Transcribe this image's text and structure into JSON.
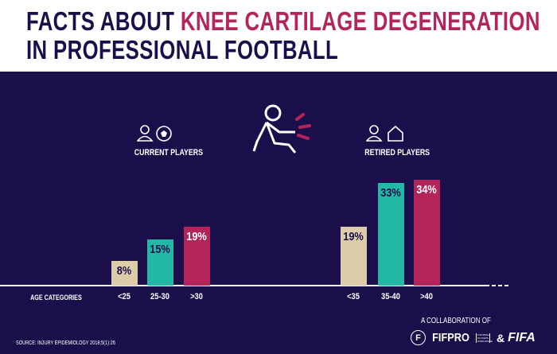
{
  "title": {
    "part1": "FACTS ABOUT ",
    "part2": "KNEE CARTILAGE DEGENERATION",
    "line2": "IN PROFESSIONAL FOOTBALL"
  },
  "groups": {
    "current": "CURRENT PLAYERS",
    "retired": "RETIRED PLAYERS"
  },
  "axis_label": "AGE CATEGORIES",
  "source": "SOURCE: INJURY EPIDEMIOLOGY 2018;5(1):26",
  "collab": {
    "label": "A COLLABORATION OF",
    "fifpro": "FIFPRO",
    "fifpro_sub": "FOOTBALL PLAYERS WORLDWIDE",
    "amp": "&",
    "fifa": "FIFA"
  },
  "colors": {
    "beige": "#dcccaa",
    "teal": "#22b8a5",
    "magenta": "#b3245a",
    "navy": "#1b0f4b"
  },
  "chart_data": {
    "type": "bar",
    "title": "Facts about knee cartilage degeneration in professional football",
    "xlabel": "AGE CATEGORIES",
    "ylabel": "",
    "ylim": [
      0,
      40
    ],
    "series": [
      {
        "name": "CURRENT PLAYERS",
        "categories": [
          "<25",
          "25-30",
          ">30"
        ],
        "values": [
          8,
          15,
          19
        ],
        "labels": [
          "8%",
          "15%",
          "19%"
        ]
      },
      {
        "name": "RETIRED PLAYERS",
        "categories": [
          "<35",
          "35-40",
          ">40"
        ],
        "values": [
          19,
          33,
          34
        ],
        "labels": [
          "19%",
          "33%",
          "34%"
        ]
      }
    ]
  }
}
